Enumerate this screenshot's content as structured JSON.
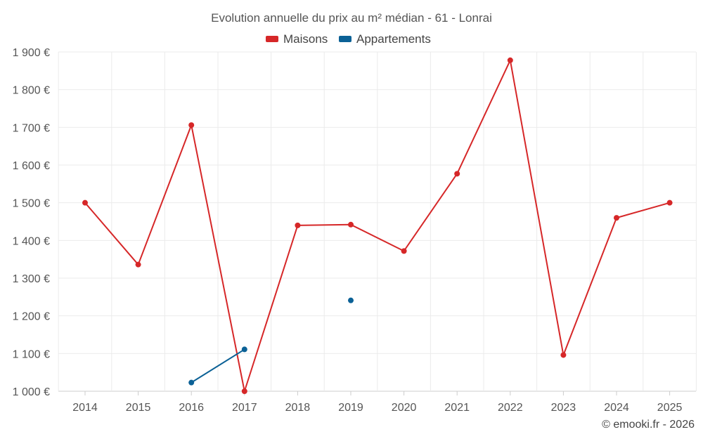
{
  "chart_data": {
    "type": "line",
    "title": "Evolution annuelle du prix au m² médian - 61 - Lonrai",
    "categories": [
      "2014",
      "2015",
      "2016",
      "2017",
      "2018",
      "2019",
      "2020",
      "2021",
      "2022",
      "2023",
      "2024",
      "2025"
    ],
    "ylim": [
      1000,
      1900
    ],
    "yticks": [
      1000,
      1100,
      1200,
      1300,
      1400,
      1500,
      1600,
      1700,
      1800,
      1900
    ],
    "ytick_labels": [
      "1 000 €",
      "1 100 €",
      "1 200 €",
      "1 300 €",
      "1 400 €",
      "1 500 €",
      "1 600 €",
      "1 700 €",
      "1 800 €",
      "1 900 €"
    ],
    "grid": true,
    "legend_position": "top-center",
    "series": [
      {
        "name": "Maisons",
        "color": "#d62728",
        "values": [
          1500,
          1336,
          1706,
          1000,
          1440,
          1442,
          1372,
          1577,
          1878,
          1096,
          1460,
          1500
        ]
      },
      {
        "name": "Appartements",
        "color": "#0b6196",
        "values": [
          null,
          null,
          1023,
          1111,
          null,
          1241,
          null,
          null,
          null,
          null,
          null,
          null
        ]
      }
    ]
  },
  "credit": "© emooki.fr - 2026"
}
